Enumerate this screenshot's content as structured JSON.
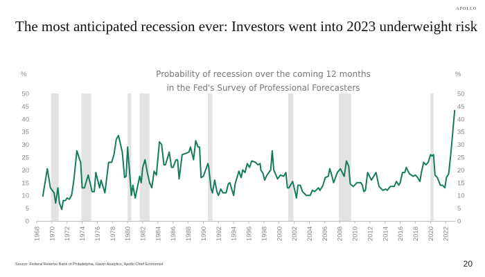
{
  "header": {
    "logo": "APOLLO",
    "title": "The most anticipated recession ever: Investors went into 2023 underweight risk"
  },
  "footer": {
    "source": "Source: Federal Reserve Bank of Philadelphia, Haver Analytics, Apollo Chief Economist",
    "page_number": "20"
  },
  "colors": {
    "line": "#137a5e",
    "recession": "#e3e3e3"
  },
  "chart_data": {
    "type": "line",
    "title": [
      "Probability of recession over the coming 12 months",
      "in the Fed's Survey of Professional Forecasters"
    ],
    "ylabel_left": "%",
    "ylabel_right": "%",
    "ylim": [
      0,
      50
    ],
    "xlim": [
      1968,
      2023.3
    ],
    "yticks": [
      0,
      5,
      10,
      15,
      20,
      25,
      30,
      35,
      40,
      45,
      50
    ],
    "xticks": [
      1968,
      1970,
      1972,
      1974,
      1976,
      1978,
      1980,
      1982,
      1984,
      1986,
      1988,
      1990,
      1992,
      1994,
      1996,
      1998,
      2000,
      2002,
      2004,
      2006,
      2008,
      2010,
      2012,
      2014,
      2016,
      2018,
      2020,
      2022
    ],
    "recessions": [
      [
        1969.9,
        1970.9
      ],
      [
        1973.9,
        1975.2
      ],
      [
        1980.0,
        1980.5
      ],
      [
        1981.6,
        1982.9
      ],
      [
        1990.6,
        1991.2
      ],
      [
        2001.2,
        2001.9
      ],
      [
        2007.9,
        2009.5
      ],
      [
        2020.0,
        2020.4
      ]
    ],
    "series": [
      {
        "name": "Probability of recession",
        "points": [
          [
            1968.8,
            9.5
          ],
          [
            1969.4,
            20.5
          ],
          [
            1969.8,
            13
          ],
          [
            1970.3,
            11
          ],
          [
            1970.5,
            7
          ],
          [
            1970.8,
            13
          ],
          [
            1971.0,
            7
          ],
          [
            1971.3,
            4.5
          ],
          [
            1971.5,
            8
          ],
          [
            1971.8,
            8
          ],
          [
            1972.0,
            9
          ],
          [
            1972.3,
            8.5
          ],
          [
            1972.6,
            10
          ],
          [
            1972.9,
            16
          ],
          [
            1973.3,
            27.5
          ],
          [
            1973.8,
            23
          ],
          [
            1974.0,
            13
          ],
          [
            1974.3,
            13
          ],
          [
            1974.8,
            18
          ],
          [
            1975.2,
            13
          ],
          [
            1975.3,
            11.5
          ],
          [
            1975.6,
            11.5
          ],
          [
            1975.8,
            19
          ],
          [
            1976.3,
            13
          ],
          [
            1976.5,
            16
          ],
          [
            1977.0,
            11
          ],
          [
            1977.5,
            23
          ],
          [
            1977.9,
            23
          ],
          [
            1978.2,
            26
          ],
          [
            1978.5,
            32
          ],
          [
            1978.8,
            33.5
          ],
          [
            1979.3,
            27
          ],
          [
            1979.6,
            17
          ],
          [
            1979.8,
            17.5
          ],
          [
            1980.0,
            29
          ],
          [
            1980.3,
            18
          ],
          [
            1980.5,
            10
          ],
          [
            1980.7,
            14
          ],
          [
            1981.0,
            9
          ],
          [
            1981.6,
            17.5
          ],
          [
            1981.8,
            15
          ],
          [
            1982.0,
            21
          ],
          [
            1982.3,
            24
          ],
          [
            1982.6,
            19
          ],
          [
            1982.9,
            15
          ],
          [
            1983.2,
            13
          ],
          [
            1983.5,
            19.5
          ],
          [
            1983.8,
            18
          ],
          [
            1984.2,
            31
          ],
          [
            1984.5,
            30
          ],
          [
            1984.8,
            22
          ],
          [
            1985.0,
            22
          ],
          [
            1985.5,
            27
          ],
          [
            1985.8,
            21
          ],
          [
            1986.0,
            21
          ],
          [
            1986.4,
            24
          ],
          [
            1986.6,
            24
          ],
          [
            1986.8,
            16.5
          ],
          [
            1987.2,
            26
          ],
          [
            1987.7,
            26.5
          ],
          [
            1988.1,
            27
          ],
          [
            1988.3,
            29
          ],
          [
            1988.7,
            24
          ],
          [
            1989.0,
            31.5
          ],
          [
            1989.3,
            29
          ],
          [
            1989.5,
            29
          ],
          [
            1989.7,
            17
          ],
          [
            1990.0,
            17.5
          ],
          [
            1990.6,
            22.5
          ],
          [
            1990.7,
            21.5
          ],
          [
            1991.0,
            13
          ],
          [
            1991.2,
            11
          ],
          [
            1991.5,
            16
          ],
          [
            1991.8,
            11.5
          ],
          [
            1992.0,
            10
          ],
          [
            1992.3,
            12.5
          ],
          [
            1992.6,
            11
          ],
          [
            1993.0,
            11
          ],
          [
            1993.3,
            14.5
          ],
          [
            1993.5,
            15
          ],
          [
            1994.0,
            10
          ],
          [
            1994.2,
            14.5
          ],
          [
            1994.7,
            19.5
          ],
          [
            1995.0,
            17
          ],
          [
            1995.2,
            20
          ],
          [
            1995.5,
            19
          ],
          [
            1995.8,
            22.5
          ],
          [
            1996.1,
            21
          ],
          [
            1996.4,
            23.5
          ],
          [
            1996.9,
            23
          ],
          [
            1997.2,
            22
          ],
          [
            1997.5,
            22.5
          ],
          [
            1997.6,
            20
          ],
          [
            1997.9,
            18.5
          ],
          [
            1998.1,
            16
          ],
          [
            1998.4,
            18
          ],
          [
            1998.9,
            20
          ],
          [
            1999.1,
            27.5
          ],
          [
            1999.3,
            20
          ],
          [
            1999.8,
            16.5
          ],
          [
            2000.2,
            18
          ],
          [
            2000.6,
            17.5
          ],
          [
            2000.9,
            19
          ],
          [
            2001.1,
            13
          ],
          [
            2001.3,
            13
          ],
          [
            2001.8,
            15.5
          ],
          [
            2002.0,
            13
          ],
          [
            2002.3,
            9
          ],
          [
            2002.5,
            14
          ],
          [
            2002.8,
            14
          ],
          [
            2003.1,
            11.5
          ],
          [
            2003.6,
            10
          ],
          [
            2004.1,
            10
          ],
          [
            2004.4,
            12
          ],
          [
            2004.7,
            11.5
          ],
          [
            2005.2,
            13
          ],
          [
            2005.4,
            12
          ],
          [
            2005.8,
            14
          ],
          [
            2006.1,
            17
          ],
          [
            2006.5,
            17.5
          ],
          [
            2006.7,
            20.5
          ],
          [
            2006.9,
            18.5
          ],
          [
            2007.2,
            15
          ],
          [
            2007.7,
            19
          ],
          [
            2008.1,
            20.5
          ],
          [
            2008.5,
            18
          ],
          [
            2008.6,
            17.5
          ],
          [
            2008.9,
            23.5
          ],
          [
            2009.2,
            21.5
          ],
          [
            2009.4,
            14.5
          ],
          [
            2009.8,
            13.5
          ],
          [
            2010.3,
            15
          ],
          [
            2010.8,
            15
          ],
          [
            2011.0,
            14
          ],
          [
            2011.2,
            11.5
          ],
          [
            2011.4,
            12
          ],
          [
            2011.7,
            19
          ],
          [
            2012.2,
            16
          ],
          [
            2012.5,
            17.5
          ],
          [
            2012.8,
            19
          ],
          [
            2013.2,
            13.5
          ],
          [
            2013.7,
            12
          ],
          [
            2014.1,
            12.5
          ],
          [
            2014.3,
            12
          ],
          [
            2014.7,
            13.5
          ],
          [
            2015.2,
            13.5
          ],
          [
            2015.5,
            15.5
          ],
          [
            2015.8,
            14
          ],
          [
            2016.0,
            15
          ],
          [
            2016.3,
            19
          ],
          [
            2016.6,
            19
          ],
          [
            2016.8,
            21
          ],
          [
            2017.2,
            18.5
          ],
          [
            2017.7,
            17.5
          ],
          [
            2018.0,
            18
          ],
          [
            2018.3,
            17
          ],
          [
            2018.6,
            15.5
          ],
          [
            2018.8,
            19
          ],
          [
            2019.1,
            23
          ],
          [
            2019.4,
            22
          ],
          [
            2019.7,
            23
          ],
          [
            2020.0,
            26
          ],
          [
            2020.2,
            25.5
          ],
          [
            2020.4,
            26
          ],
          [
            2020.6,
            18
          ],
          [
            2020.9,
            17
          ],
          [
            2021.3,
            14
          ],
          [
            2021.6,
            14
          ],
          [
            2021.9,
            13
          ],
          [
            2022.1,
            17
          ],
          [
            2022.4,
            18.5
          ],
          [
            2022.7,
            27
          ],
          [
            2023.2,
            43.5
          ]
        ]
      }
    ]
  }
}
